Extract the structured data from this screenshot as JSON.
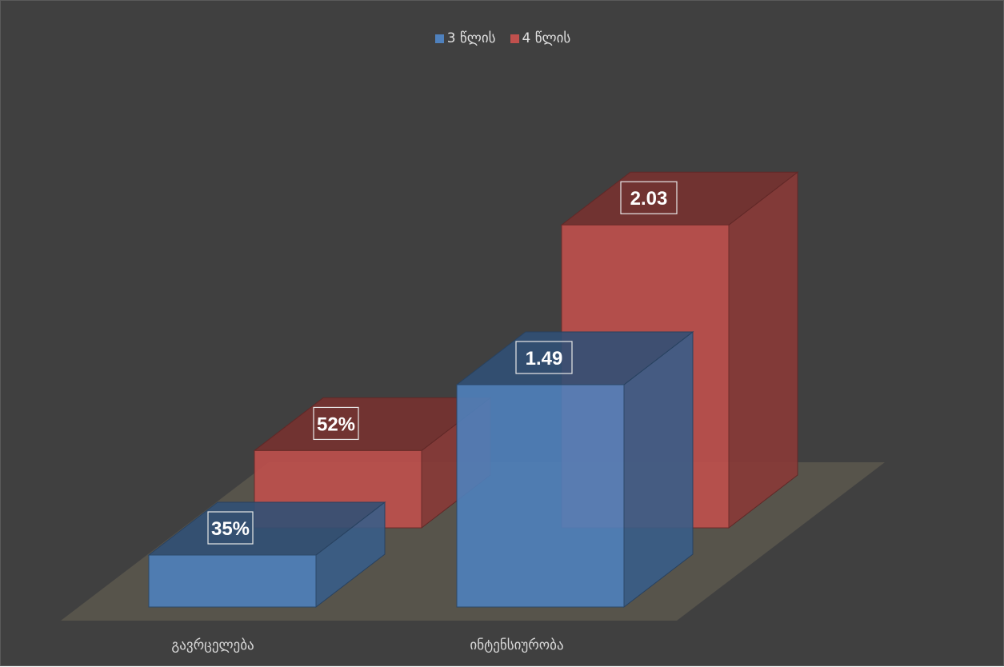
{
  "chart_data": {
    "type": "bar",
    "style": "3d-clustered-column",
    "categories": [
      "გავრცელება",
      "ინტენსიურობა"
    ],
    "series": [
      {
        "name": "3 წლის",
        "color": "#4f81bd",
        "values": [
          35,
          1.49
        ],
        "labels": [
          "35%",
          "1.49"
        ]
      },
      {
        "name": "4 წლის",
        "color": "#c0504d",
        "values": [
          52,
          2.03
        ],
        "labels": [
          "52%",
          "2.03"
        ]
      }
    ],
    "legend_position": "top-center",
    "grid": false,
    "title": "",
    "xlabel": "",
    "ylabel": ""
  }
}
